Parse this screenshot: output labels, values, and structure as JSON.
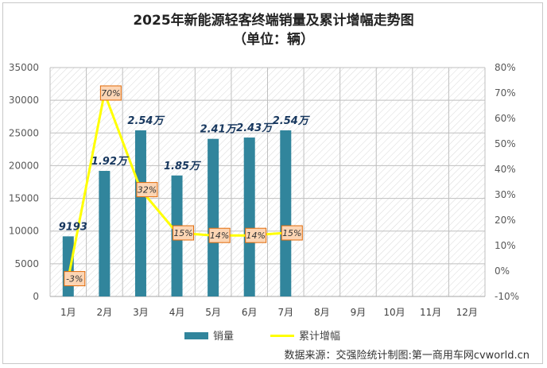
{
  "title_line1": "2025年新能源轻客终端销量及累计增幅走势图",
  "title_line2": "（单位：辆）",
  "source": "数据来源：交强险统计制图:第一商用车网cvworld.cn",
  "colors": {
    "bar": "#31859c",
    "line": "#ffff00",
    "line_label_fill": "#fcd5b4",
    "line_label_stroke": "#e26b0a",
    "bar_label_text": "#17375e",
    "plot_hatch": "#d9d9d9",
    "grid": "#bfbfbf"
  },
  "chart_data": {
    "type": "bar+line",
    "categories": [
      "1月",
      "2月",
      "3月",
      "4月",
      "5月",
      "6月",
      "7月",
      "8月",
      "9月",
      "10月",
      "11月",
      "12月"
    ],
    "series": [
      {
        "name": "销量",
        "type": "bar",
        "axis": "left",
        "values": [
          9193,
          19200,
          25400,
          18500,
          24100,
          24300,
          25400,
          null,
          null,
          null,
          null,
          null
        ],
        "labels": [
          "9193",
          "1.92万",
          "2.54万",
          "1.85万",
          "2.41万",
          "2.43万",
          "2.54万",
          "",
          "",
          "",
          "",
          ""
        ]
      },
      {
        "name": "累计增幅",
        "type": "line",
        "axis": "right",
        "values": [
          -3,
          70,
          32,
          15,
          14,
          14,
          15,
          null,
          null,
          null,
          null,
          null
        ],
        "labels": [
          "-3%",
          "70%",
          "32%",
          "15%",
          "14%",
          "14%",
          "15%",
          "",
          "",
          "",
          "",
          ""
        ]
      }
    ],
    "y_left": {
      "min": 0,
      "max": 35000,
      "step": 5000,
      "ticks": [
        "0",
        "5000",
        "10000",
        "15000",
        "20000",
        "25000",
        "30000",
        "35000"
      ]
    },
    "y_right": {
      "min": -10,
      "max": 80,
      "step": 10,
      "ticks": [
        "-10%",
        "0%",
        "10%",
        "20%",
        "30%",
        "40%",
        "50%",
        "60%",
        "70%",
        "80%"
      ]
    },
    "legend_position": "bottom",
    "grid": true
  }
}
